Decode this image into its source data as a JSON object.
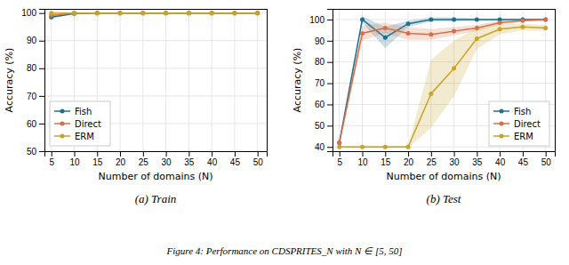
{
  "title": "Figure 4: Performance on CDSPRITES_N with N ∈ [5, 50]",
  "chart_data": [
    {
      "type": "line",
      "subtitle": "(a) Train",
      "x_label": "Number of domains (N)",
      "y_label": "Accuracy (%)",
      "x": [
        5,
        10,
        15,
        20,
        25,
        30,
        35,
        40,
        45,
        50
      ],
      "xlim": [
        3.5,
        52
      ],
      "xticks": [
        5,
        10,
        15,
        20,
        25,
        30,
        35,
        40,
        45,
        50
      ],
      "ylim": [
        50,
        101.5
      ],
      "yticks": [
        50,
        60,
        70,
        80,
        90,
        100
      ],
      "grid": true,
      "legend": "lower left",
      "series": [
        {
          "name": "Fish",
          "color": "#1f6f8b",
          "marker": "circle",
          "values": [
            98.5,
            99.8,
            100.0,
            100.0,
            100.0,
            100.0,
            100.0,
            100.0,
            100.0,
            100.0
          ],
          "errors": [
            0.5,
            0.2,
            0.0,
            0.0,
            0.0,
            0.0,
            0.0,
            0.0,
            0.0,
            0.0
          ]
        },
        {
          "name": "Direct",
          "color": "#d4704a",
          "marker": "circle",
          "values": [
            99.2,
            100.0,
            100.0,
            100.0,
            100.0,
            100.0,
            100.0,
            100.0,
            100.0,
            100.0
          ],
          "errors": [
            0.3,
            0.0,
            0.0,
            0.0,
            0.0,
            0.0,
            0.0,
            0.0,
            0.0,
            0.0
          ]
        },
        {
          "name": "ERM",
          "color": "#c9a227",
          "marker": "circle",
          "values": [
            100.0,
            100.0,
            100.0,
            100.0,
            100.0,
            100.0,
            100.0,
            100.0,
            100.0,
            100.0
          ],
          "errors": [
            0.0,
            0.0,
            0.0,
            0.0,
            0.0,
            0.0,
            0.0,
            0.0,
            0.0,
            0.0
          ]
        }
      ]
    },
    {
      "type": "line",
      "subtitle": "(b) Test",
      "x_label": "Number of domains (N)",
      "y_label": "Accuracy (%)",
      "x": [
        5,
        10,
        15,
        20,
        25,
        30,
        35,
        40,
        45,
        50
      ],
      "xlim": [
        3.5,
        52
      ],
      "xticks": [
        5,
        10,
        15,
        20,
        25,
        30,
        35,
        40,
        45,
        50
      ],
      "ylim": [
        38,
        105
      ],
      "yticks": [
        40,
        50,
        60,
        70,
        80,
        90,
        100
      ],
      "grid": true,
      "legend": "lower right",
      "series": [
        {
          "name": "Fish",
          "color": "#1f6f8b",
          "marker": "circle",
          "values": [
            42.0,
            100.0,
            91.5,
            98.0,
            100.0,
            100.0,
            100.0,
            100.0,
            100.0,
            100.0
          ],
          "errors": [
            1.0,
            1.5,
            5.0,
            1.5,
            1.0,
            1.0,
            0.5,
            0.5,
            0.5,
            0.5
          ]
        },
        {
          "name": "Direct",
          "color": "#d4704a",
          "marker": "circle",
          "values": [
            42.0,
            93.5,
            96.0,
            93.5,
            93.0,
            94.5,
            96.0,
            98.5,
            99.5,
            100.0
          ],
          "errors": [
            1.0,
            3.5,
            2.5,
            3.0,
            2.5,
            2.0,
            1.5,
            1.0,
            0.5,
            0.5
          ]
        },
        {
          "name": "ERM",
          "color": "#c9a227",
          "marker": "circle",
          "values": [
            40.0,
            40.0,
            40.0,
            40.0,
            65.0,
            77.0,
            91.0,
            95.5,
            96.5,
            96.0
          ],
          "errors": [
            0.5,
            0.5,
            0.5,
            0.5,
            16.0,
            13.0,
            5.0,
            2.5,
            1.5,
            1.5
          ]
        }
      ]
    }
  ]
}
